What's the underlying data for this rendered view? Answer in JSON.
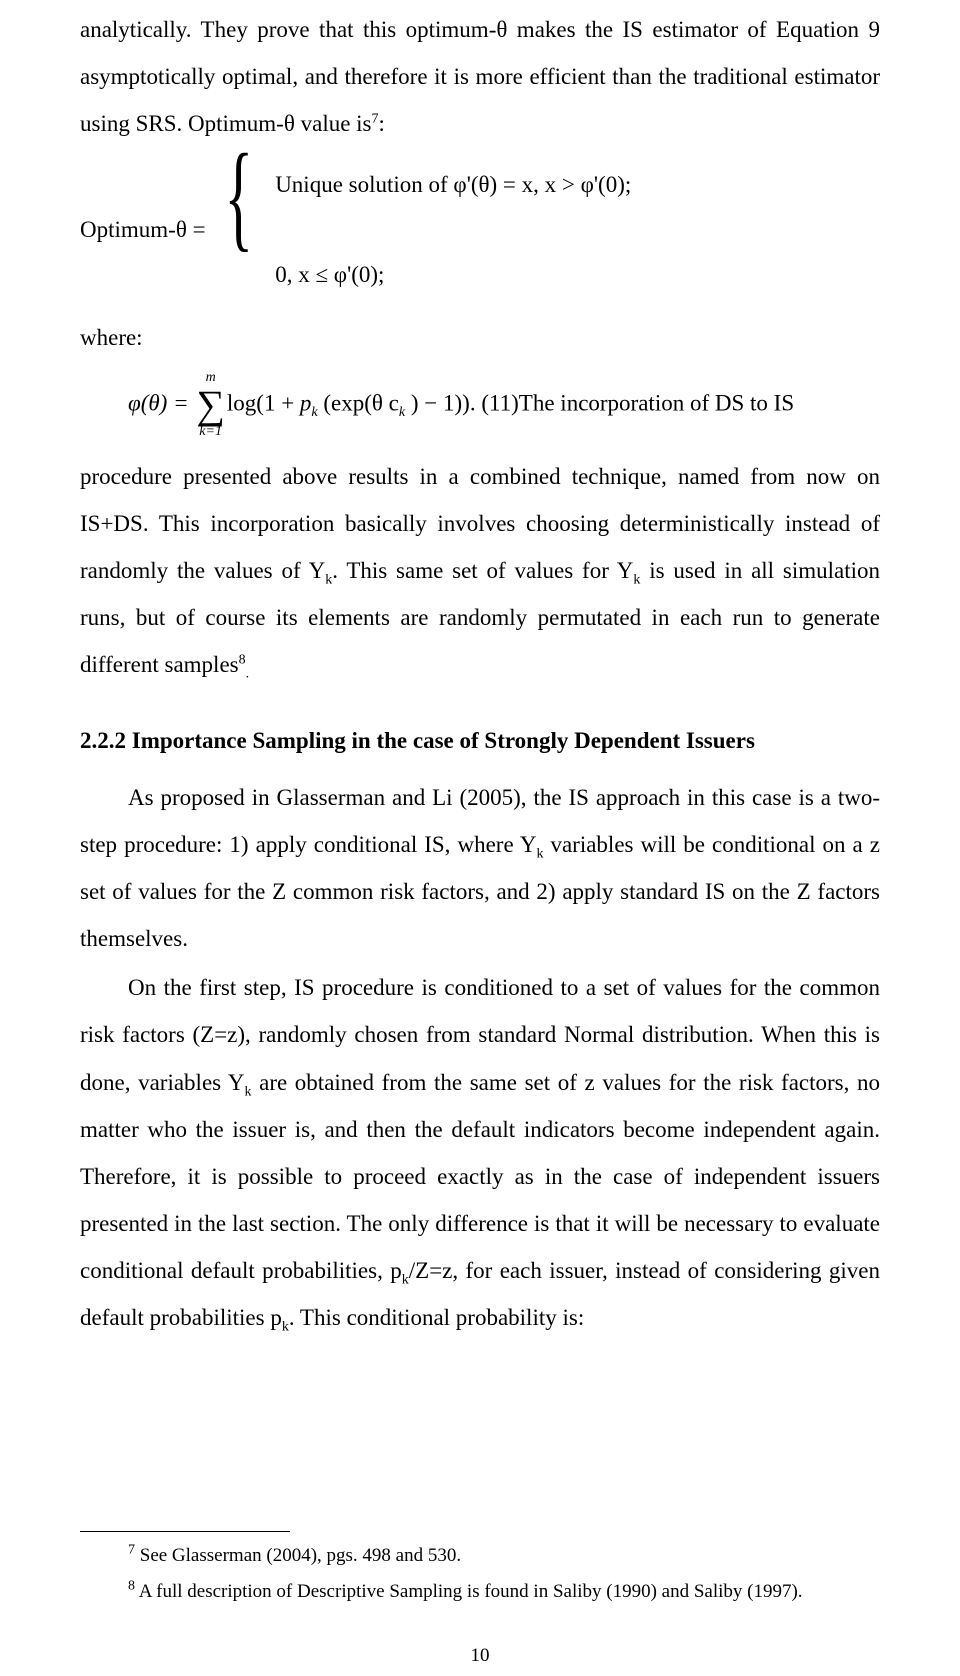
{
  "intro_para": "analytically. They prove that this optimum-θ makes the IS estimator of Equation 9 asymptotically optimal, and therefore it is more efficient than the traditional estimator using SRS. Optimum-θ value is",
  "intro_sup": "7",
  "intro_tail": ":",
  "opt_lhs": "Optimum-θ =",
  "case1": "Unique solution of φ'(θ) = x, x > φ'(0);",
  "case2": "0, x ≤ φ'(0);",
  "where": "where:",
  "eq11": {
    "lhs": "φ(θ) = ",
    "sum_top": "m",
    "sum_bot": "k=1",
    "rhs_a": "log(1 + ",
    "p": "p",
    "psub": "k",
    "rhs_b": " (exp(θ c",
    "csub": "k",
    "rhs_c": " ) − 1))",
    "tail": ". (11)The incorporation of DS to IS"
  },
  "proc_para_a": "procedure presented above results in a combined technique, named from now on IS+DS. This incorporation basically involves choosing deterministically instead of randomly the values of Y",
  "proc_sub1": "k",
  "proc_para_b": ". This same set of values for Y",
  "proc_sub2": "k",
  "proc_para_c": " is used in all simulation runs, but of course its elements are randomly permutated in each run to generate different samples",
  "proc_sup": "8",
  "proc_tail": ".",
  "section_title": "2.2.2 Importance Sampling in the case of Strongly Dependent Issuers",
  "sec_para1_a": "As proposed in Glasserman and Li (2005), the IS approach in this case is a two-step procedure: 1) apply conditional IS, where Y",
  "sec_para1_sub": "k",
  "sec_para1_b": " variables will be conditional on a z set of values for the Z common risk factors, and 2) apply standard IS on the Z factors themselves.",
  "sec_para2_a": "On the first step, IS procedure is conditioned to a set of values for the common risk factors (Z=z), randomly chosen from standard Normal distribution. When this is done, variables Y",
  "sec_para2_sub": "k",
  "sec_para2_b": " are obtained from the same set of z values for the risk factors, no matter who the issuer is, and then the default indicators become independent again. Therefore, it is possible to proceed exactly as in the case of independent issuers presented in the last section. The only difference is that it will be necessary to evaluate conditional default probabilities, p",
  "sec_para2_sub2": "k",
  "sec_para2_c": "/Z=z, for each issuer, instead of considering given default probabilities p",
  "sec_para2_sub3": "k",
  "sec_para2_d": ". This conditional probability is:",
  "fn7_sup": "7",
  "fn7": " See Glasserman (2004), pgs. 498 and 530.",
  "fn8_sup": "8",
  "fn8": " A full description of Descriptive Sampling is found in Saliby (1990) and Saliby (1997).",
  "page_number": "10"
}
